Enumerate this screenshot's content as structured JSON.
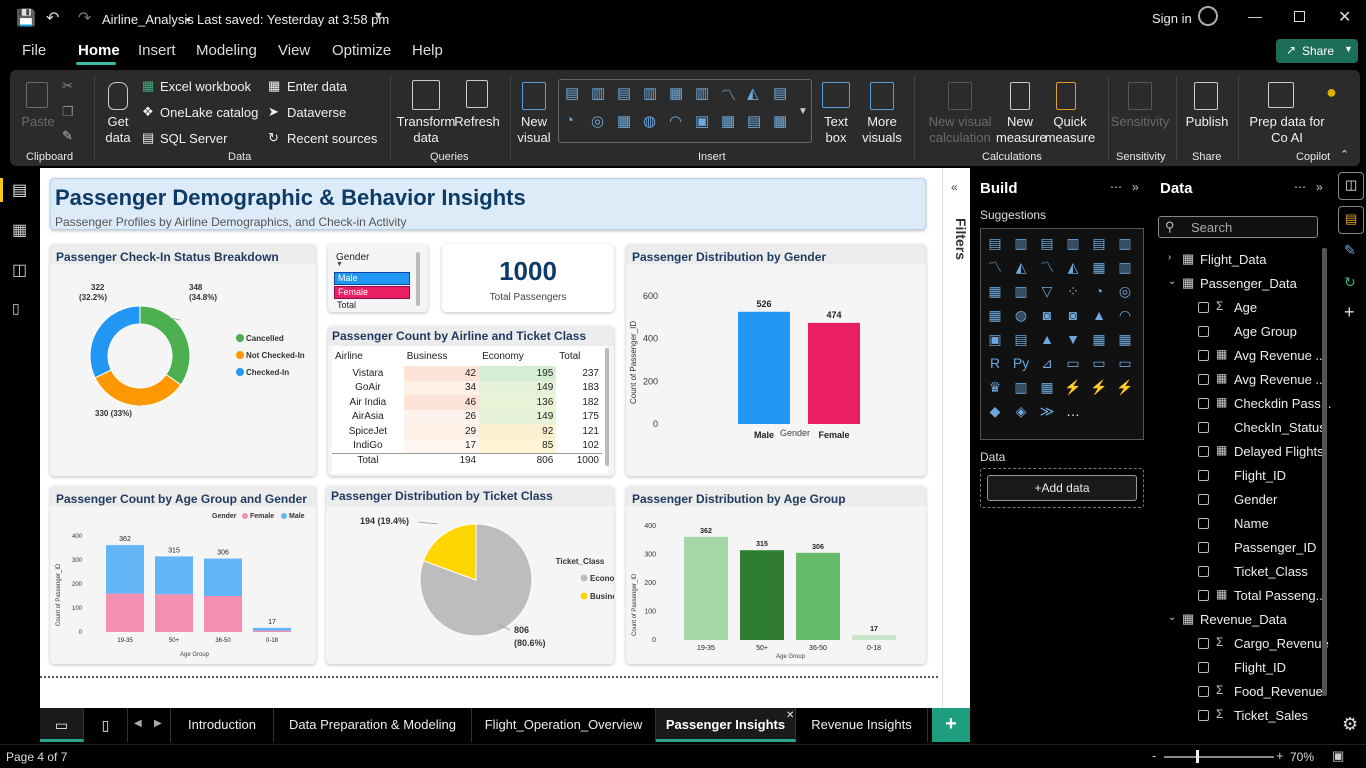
{
  "titlebar": {
    "doc_title": "Airline_Analysis",
    "saved": "Last saved: Yesterday at 3:58 pm",
    "signin": "Sign in"
  },
  "menu": [
    "File",
    "Home",
    "Insert",
    "Modeling",
    "View",
    "Optimize",
    "Help"
  ],
  "share_label": "Share",
  "ribbon": {
    "paste": "Paste",
    "get_data": "Get data",
    "excel": "Excel workbook",
    "onelake": "OneLake catalog",
    "sql": "SQL Server",
    "enter_data": "Enter data",
    "dataverse": "Dataverse",
    "recent": "Recent sources",
    "transform": "Transform data",
    "refresh": "Refresh",
    "new_visual": "New visual",
    "text_box": "Text box",
    "more_visuals": "More visuals",
    "new_visual_calc": "New visual calculation",
    "new_measure": "New measure",
    "quick_measure": "Quick measure",
    "sensitivity": "Sensitivity",
    "publish": "Publish",
    "prep_data": "Prep data for Co AI",
    "groups": {
      "clipboard": "Clipboard",
      "data": "Data",
      "queries": "Queries",
      "insert": "Insert",
      "calculations": "Calculations",
      "sensitivity": "Sensitivity",
      "share": "Share",
      "copilot": "Copilot"
    }
  },
  "report": {
    "title": "Passenger Demographic & Behavior Insights",
    "subtitle": "Passenger Profiles by Airline Demographics, and Check-in Activity",
    "checkin": {
      "title": "Passenger Check-In Status Breakdown",
      "legend": [
        "Cancelled",
        "Not Checked-In",
        "Checked-In"
      ],
      "label_cancelled": "348",
      "label_cancelled_pct": "(34.8%)",
      "label_checked": "322",
      "label_checked_pct": "(32.2%)",
      "label_notchecked": "330 (33%)"
    },
    "slicer": {
      "title": "Gender",
      "items": [
        "Male",
        "Female",
        "Total"
      ]
    },
    "total_card": {
      "value": "1000",
      "label": "Total Passengers"
    },
    "matrix": {
      "title": "Passenger Count by Airline and Ticket Class",
      "headers": [
        "Airline",
        "Business",
        "Economy",
        "Total"
      ],
      "rows": [
        [
          "Vistara",
          "42",
          "195",
          "237"
        ],
        [
          "GoAir",
          "34",
          "149",
          "183"
        ],
        [
          "Air India",
          "46",
          "136",
          "182"
        ],
        [
          "AirAsia",
          "26",
          "149",
          "175"
        ],
        [
          "SpiceJet",
          "29",
          "92",
          "121"
        ],
        [
          "IndiGo",
          "17",
          "85",
          "102"
        ],
        [
          "Total",
          "194",
          "806",
          "1000"
        ]
      ]
    },
    "gender_chart": {
      "title": "Passenger Distribution by Gender",
      "ylabel": "Count of Passenger_ID",
      "xlabel": "Gender"
    },
    "age_gender_chart": {
      "title": "Passenger Count by Age Group and Gender",
      "legend_title": "Gender",
      "legend": [
        "Female",
        "Male"
      ],
      "ylabel": "Count of Passenger_ID",
      "xlabel": "Age Group"
    },
    "ticket_chart": {
      "title": "Passenger Distribution by Ticket Class",
      "legend_title": "Ticket_Class",
      "legend": [
        "Economy",
        "Business"
      ],
      "label_business": "194 (19.4%)",
      "label_economy": "806",
      "label_economy_pct": "(80.6%)"
    },
    "age_chart": {
      "title": "Passenger Distribution by Age Group",
      "ylabel": "Count of Passenger_ID",
      "xlabel": "Age Group"
    }
  },
  "chart_data": [
    {
      "type": "pie",
      "title": "Passenger Check-In Status Breakdown",
      "donut": true,
      "categories": [
        "Cancelled",
        "Not Checked-In",
        "Checked-In"
      ],
      "values": [
        348,
        330,
        322
      ],
      "colors": [
        "#4caf50",
        "#ff9800",
        "#2196f3"
      ]
    },
    {
      "type": "bar",
      "title": "Passenger Distribution by Gender",
      "categories": [
        "Male",
        "Female"
      ],
      "values": [
        526,
        474
      ],
      "ylim": [
        0,
        600
      ],
      "yticks": [
        0,
        200,
        400,
        600
      ],
      "colors": [
        "#2196f3",
        "#e91e63"
      ]
    },
    {
      "type": "bar",
      "stacked": true,
      "title": "Passenger Count by Age Group and Gender",
      "categories": [
        "19-35",
        "50+",
        "36-50",
        "0-18"
      ],
      "totals": [
        362,
        315,
        306,
        17
      ],
      "series": [
        {
          "name": "Female",
          "values": [
            160,
            157,
            150,
            6
          ]
        },
        {
          "name": "Male",
          "values": [
            202,
            158,
            156,
            11
          ]
        }
      ],
      "ylim": [
        0,
        400
      ],
      "yticks": [
        0,
        100,
        200,
        300,
        400
      ],
      "colors": [
        "#f48fb1",
        "#64b5f6"
      ]
    },
    {
      "type": "pie",
      "title": "Passenger Distribution by Ticket Class",
      "categories": [
        "Economy",
        "Business"
      ],
      "values": [
        806,
        194
      ],
      "colors": [
        "#bdbdbd",
        "#ffd600"
      ]
    },
    {
      "type": "bar",
      "title": "Passenger Distribution by Age Group",
      "categories": [
        "19-35",
        "50+",
        "36-50",
        "0-18"
      ],
      "values": [
        362,
        315,
        306,
        17
      ],
      "ylim": [
        0,
        400
      ],
      "yticks": [
        0,
        100,
        200,
        300,
        400
      ],
      "colors": [
        "#a5d6a7",
        "#2e7d32",
        "#66bb6a",
        "#c8e6c9"
      ]
    }
  ],
  "build": {
    "title": "Build",
    "suggestions": "Suggestions",
    "data_label": "Data",
    "add_data": "+Add data"
  },
  "filters": {
    "label": "Filters"
  },
  "data_pane": {
    "title": "Data",
    "search_placeholder": "Search",
    "tables": [
      {
        "name": "Flight_Data"
      },
      {
        "name": "Passenger_Data"
      },
      {
        "name": "Revenue_Data"
      }
    ],
    "passenger_fields": [
      "Age",
      "Age Group",
      "Avg Revenue ...",
      "Avg Revenue ...",
      "Checkdin Pass...",
      "CheckIn_Status",
      "Delayed Flights",
      "Flight_ID",
      "Gender",
      "Name",
      "Passenger_ID",
      "Ticket_Class",
      "Total Passeng..."
    ],
    "revenue_fields": [
      "Cargo_Revenue",
      "Flight_ID",
      "Food_Revenue",
      "Ticket_Sales"
    ]
  },
  "pages": [
    "Introduction",
    "Data Preparation & Modeling",
    "Flight_Operation_Overview",
    "Passenger Insights",
    "Revenue Insights"
  ],
  "status": {
    "page": "Page 4 of 7",
    "zoom": "70%"
  }
}
